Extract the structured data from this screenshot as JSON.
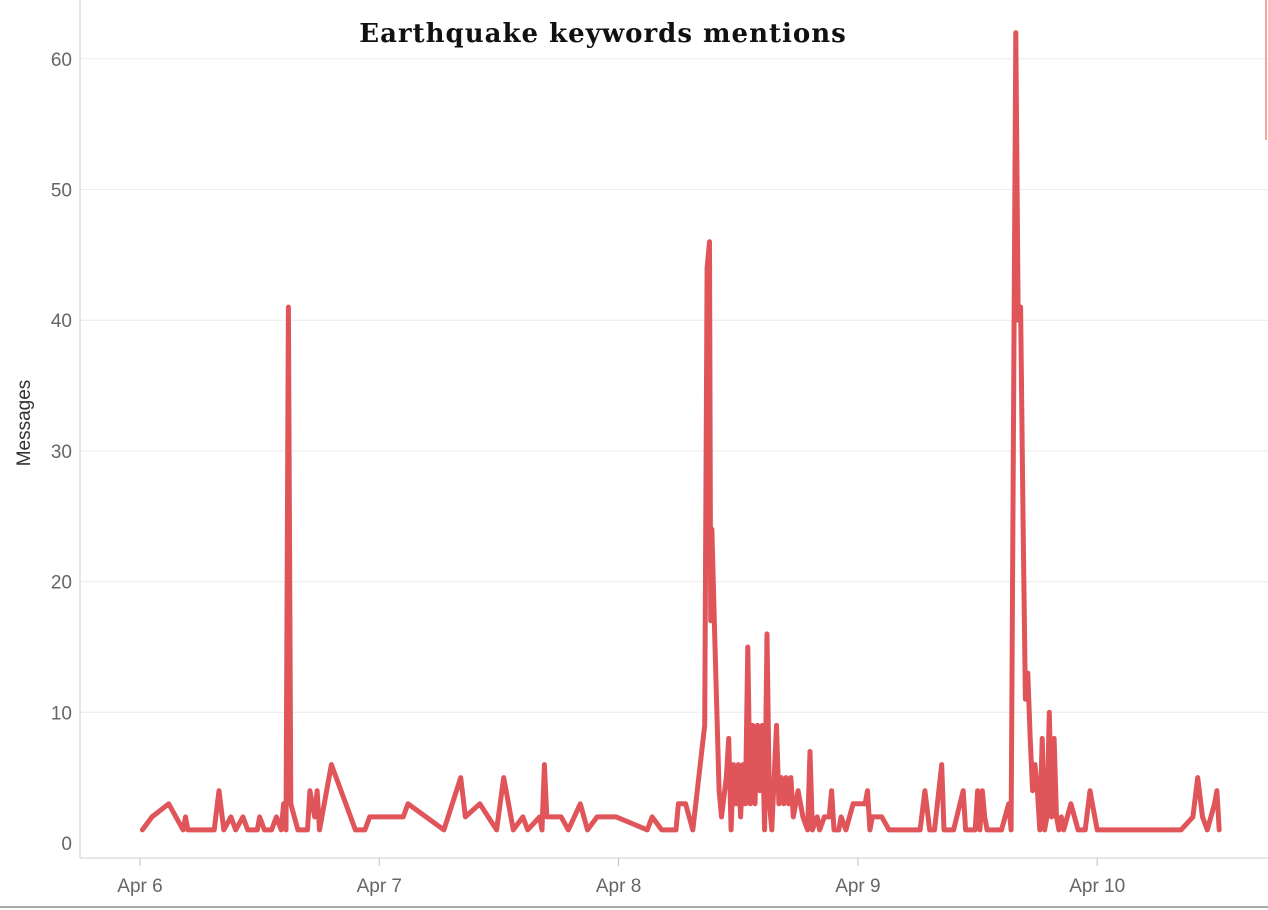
{
  "chart_data": {
    "type": "line",
    "title": "Earthquake keywords mentions",
    "xlabel": "",
    "ylabel": "Messages",
    "x_ticks": [
      "Apr 6",
      "Apr 7",
      "Apr 8",
      "Apr 9",
      "Apr 10"
    ],
    "y_ticks": [
      0,
      10,
      20,
      30,
      40,
      50,
      60
    ],
    "ylim": [
      0,
      62
    ],
    "xlim_days": [
      0,
      4.5
    ],
    "grid": true,
    "legend": "none",
    "series": [
      {
        "color": "#e0555a",
        "points": [
          [
            0.01,
            1
          ],
          [
            0.05,
            2
          ],
          [
            0.12,
            3
          ],
          [
            0.18,
            1
          ],
          [
            0.19,
            2
          ],
          [
            0.2,
            1
          ],
          [
            0.31,
            1
          ],
          [
            0.33,
            4
          ],
          [
            0.35,
            1
          ],
          [
            0.38,
            2
          ],
          [
            0.4,
            1
          ],
          [
            0.43,
            2
          ],
          [
            0.45,
            1
          ],
          [
            0.49,
            1
          ],
          [
            0.5,
            2
          ],
          [
            0.52,
            1
          ],
          [
            0.55,
            1
          ],
          [
            0.57,
            2
          ],
          [
            0.59,
            1
          ],
          [
            0.6,
            3
          ],
          [
            0.61,
            1
          ],
          [
            0.62,
            41
          ],
          [
            0.63,
            3
          ],
          [
            0.66,
            1
          ],
          [
            0.7,
            1
          ],
          [
            0.71,
            4
          ],
          [
            0.73,
            2
          ],
          [
            0.74,
            4
          ],
          [
            0.75,
            1
          ],
          [
            0.8,
            6
          ],
          [
            0.9,
            1
          ],
          [
            0.94,
            1
          ],
          [
            0.96,
            2
          ],
          [
            1.1,
            2
          ],
          [
            1.12,
            3
          ],
          [
            1.27,
            1
          ],
          [
            1.34,
            5
          ],
          [
            1.36,
            2
          ],
          [
            1.42,
            3
          ],
          [
            1.49,
            1
          ],
          [
            1.52,
            5
          ],
          [
            1.56,
            1
          ],
          [
            1.6,
            2
          ],
          [
            1.62,
            1
          ],
          [
            1.67,
            2
          ],
          [
            1.68,
            1
          ],
          [
            1.69,
            6
          ],
          [
            1.7,
            2
          ],
          [
            1.76,
            2
          ],
          [
            1.79,
            1
          ],
          [
            1.84,
            3
          ],
          [
            1.87,
            1
          ],
          [
            1.91,
            2
          ],
          [
            1.99,
            2
          ],
          [
            2.12,
            1
          ],
          [
            2.14,
            2
          ],
          [
            2.18,
            1
          ],
          [
            2.24,
            1
          ],
          [
            2.25,
            3
          ],
          [
            2.28,
            3
          ],
          [
            2.31,
            1
          ],
          [
            2.36,
            9
          ],
          [
            2.37,
            44
          ],
          [
            2.38,
            46
          ],
          [
            2.385,
            17
          ],
          [
            2.39,
            24
          ],
          [
            2.4,
            17
          ],
          [
            2.42,
            4
          ],
          [
            2.43,
            2
          ],
          [
            2.45,
            5
          ],
          [
            2.46,
            8
          ],
          [
            2.47,
            1
          ],
          [
            2.48,
            6
          ],
          [
            2.49,
            3
          ],
          [
            2.5,
            6
          ],
          [
            2.51,
            2
          ],
          [
            2.52,
            6
          ],
          [
            2.53,
            3
          ],
          [
            2.54,
            15
          ],
          [
            2.55,
            3
          ],
          [
            2.56,
            9
          ],
          [
            2.57,
            3
          ],
          [
            2.58,
            9
          ],
          [
            2.59,
            4
          ],
          [
            2.6,
            9
          ],
          [
            2.61,
            1
          ],
          [
            2.62,
            16
          ],
          [
            2.63,
            3
          ],
          [
            2.64,
            1
          ],
          [
            2.66,
            9
          ],
          [
            2.67,
            3
          ],
          [
            2.68,
            5
          ],
          [
            2.69,
            3
          ],
          [
            2.7,
            5
          ],
          [
            2.71,
            3
          ],
          [
            2.72,
            5
          ],
          [
            2.73,
            2
          ],
          [
            2.75,
            4
          ],
          [
            2.77,
            2
          ],
          [
            2.79,
            1
          ],
          [
            2.8,
            7
          ],
          [
            2.81,
            1
          ],
          [
            2.83,
            2
          ],
          [
            2.84,
            1
          ],
          [
            2.86,
            2
          ],
          [
            2.88,
            2
          ],
          [
            2.89,
            4
          ],
          [
            2.9,
            1
          ],
          [
            2.92,
            1
          ],
          [
            2.93,
            2
          ],
          [
            2.95,
            1
          ],
          [
            2.98,
            3
          ],
          [
            3.03,
            3
          ],
          [
            3.04,
            4
          ],
          [
            3.05,
            1
          ],
          [
            3.06,
            2
          ],
          [
            3.1,
            2
          ],
          [
            3.13,
            1
          ],
          [
            3.26,
            1
          ],
          [
            3.28,
            4
          ],
          [
            3.3,
            1
          ],
          [
            3.32,
            1
          ],
          [
            3.35,
            6
          ],
          [
            3.36,
            1
          ],
          [
            3.4,
            1
          ],
          [
            3.44,
            4
          ],
          [
            3.45,
            1
          ],
          [
            3.49,
            1
          ],
          [
            3.5,
            4
          ],
          [
            3.51,
            1
          ],
          [
            3.52,
            4
          ],
          [
            3.53,
            2
          ],
          [
            3.54,
            1
          ],
          [
            3.6,
            1
          ],
          [
            3.63,
            3
          ],
          [
            3.64,
            1
          ],
          [
            3.66,
            62
          ],
          [
            3.67,
            40
          ],
          [
            3.68,
            41
          ],
          [
            3.69,
            25
          ],
          [
            3.7,
            11
          ],
          [
            3.71,
            13
          ],
          [
            3.72,
            8
          ],
          [
            3.73,
            4
          ],
          [
            3.74,
            6
          ],
          [
            3.75,
            4
          ],
          [
            3.76,
            1
          ],
          [
            3.77,
            8
          ],
          [
            3.78,
            1
          ],
          [
            3.79,
            2
          ],
          [
            3.8,
            10
          ],
          [
            3.81,
            2
          ],
          [
            3.82,
            8
          ],
          [
            3.83,
            2
          ],
          [
            3.84,
            1
          ],
          [
            3.85,
            2
          ],
          [
            3.86,
            1
          ],
          [
            3.89,
            3
          ],
          [
            3.92,
            1
          ],
          [
            3.95,
            1
          ],
          [
            3.97,
            4
          ],
          [
            4.0,
            1
          ],
          [
            4.08,
            1
          ],
          [
            4.15,
            1
          ],
          [
            4.35,
            1
          ],
          [
            4.4,
            2
          ],
          [
            4.42,
            5
          ],
          [
            4.44,
            2
          ],
          [
            4.46,
            1
          ],
          [
            4.49,
            3
          ],
          [
            4.5,
            4
          ],
          [
            4.51,
            1
          ]
        ]
      }
    ]
  }
}
